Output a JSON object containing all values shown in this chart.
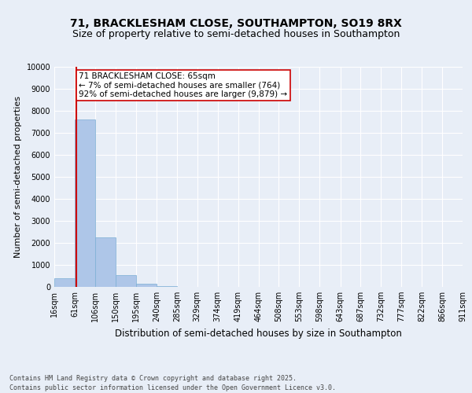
{
  "title_line1": "71, BRACKLESHAM CLOSE, SOUTHAMPTON, SO19 8RX",
  "title_line2": "Size of property relative to semi-detached houses in Southampton",
  "xlabel": "Distribution of semi-detached houses by size in Southampton",
  "ylabel": "Number of semi-detached properties",
  "footer": "Contains HM Land Registry data © Crown copyright and database right 2025.\nContains public sector information licensed under the Open Government Licence v3.0.",
  "bar_edges": [
    16,
    61,
    106,
    150,
    195,
    240,
    285,
    329,
    374,
    419,
    464,
    508,
    553,
    598,
    643,
    687,
    732,
    777,
    822,
    866,
    911
  ],
  "bar_heights": [
    400,
    7600,
    2250,
    550,
    130,
    30,
    10,
    5,
    3,
    2,
    1,
    1,
    0,
    0,
    0,
    0,
    0,
    0,
    0,
    0
  ],
  "bar_color": "#aec6e8",
  "bar_edge_color": "#7bafd4",
  "property_size": 65,
  "property_label": "71 BRACKLESHAM CLOSE: 65sqm",
  "pct_smaller": "7% of semi-detached houses are smaller (764)",
  "pct_larger": "92% of semi-detached houses are larger (9,879)",
  "vline_color": "#cc0000",
  "annotation_box_color": "#cc0000",
  "ylim": [
    0,
    10000
  ],
  "yticks": [
    0,
    1000,
    2000,
    3000,
    4000,
    5000,
    6000,
    7000,
    8000,
    9000,
    10000
  ],
  "bg_color": "#e8eef7",
  "grid_color": "#ffffff",
  "fig_bg_color": "#e8eef7",
  "title_fontsize": 10,
  "subtitle_fontsize": 9,
  "tick_label_fontsize": 7,
  "ylabel_fontsize": 8,
  "xlabel_fontsize": 8.5,
  "footer_fontsize": 6,
  "annotation_fontsize": 7.5
}
